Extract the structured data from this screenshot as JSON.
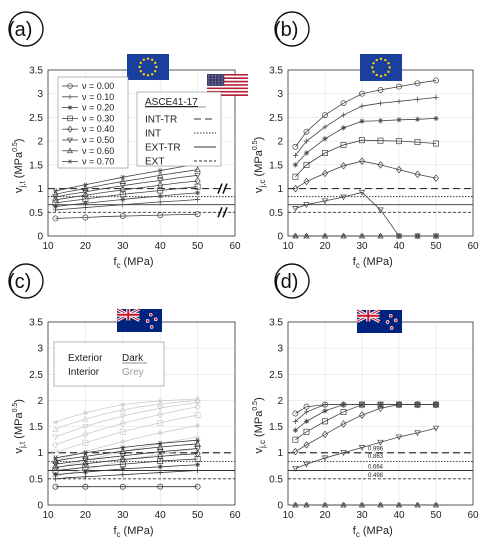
{
  "chart_data": [
    {
      "id": "a",
      "type": "line",
      "panel_label": "(a)",
      "xlabel": "f",
      "xlabel_sub": "c",
      "xlabel_unit": " (MPa)",
      "ylabel": "v",
      "ylabel_sub": "j,t",
      "ylabel_unit_pre": " (MPa",
      "ylabel_sup": "0.5",
      "ylabel_unit_post": ")",
      "xlim": [
        10,
        60
      ],
      "ylim": [
        0,
        3.5
      ],
      "xticks": [
        "10",
        "20",
        "30",
        "40",
        "50",
        "60"
      ],
      "yticks": [
        "0",
        "0.5",
        "1",
        "1.5",
        "2",
        "2.5",
        "3",
        "3.5"
      ],
      "flags": [
        "eu-flag",
        "us-flag"
      ],
      "legend": {
        "title_prefix": "ν = ",
        "entries": [
          {
            "label": "0.00",
            "marker": "circle"
          },
          {
            "label": "0.10",
            "marker": "plus"
          },
          {
            "label": "0.20",
            "marker": "star"
          },
          {
            "label": "0.30",
            "marker": "square"
          },
          {
            "label": "0.40",
            "marker": "diamond"
          },
          {
            "label": "0.50",
            "marker": "triangle-down"
          },
          {
            "label": "0.60",
            "marker": "triangle-up"
          },
          {
            "label": "0.70",
            "marker": "asterisk"
          }
        ]
      },
      "ref_legend": {
        "title": "ASCE41-17",
        "entries": [
          {
            "label": "INT-TR",
            "style": "dashed-long"
          },
          {
            "label": "INT",
            "style": "dotted"
          },
          {
            "label": "EXT-TR",
            "style": "solid"
          },
          {
            "label": "EXT",
            "style": "dashed-short"
          }
        ]
      },
      "ref_lines": [
        {
          "name": "INT-TR",
          "y": 1.0,
          "style": "dashed-long"
        },
        {
          "name": "INT",
          "y": 0.83,
          "style": "dotted"
        },
        {
          "name": "EXT-TR",
          "y": 0.66,
          "style": "solid"
        },
        {
          "name": "EXT",
          "y": 0.5,
          "style": "dashed-short"
        }
      ],
      "x": [
        12,
        15,
        20,
        25,
        30,
        35,
        40,
        45,
        50
      ],
      "series": [
        {
          "marker": "circle",
          "color": "#444444",
          "values": [
            0.37,
            0.38,
            0.39,
            0.41,
            0.42,
            0.43,
            0.44,
            0.45,
            0.46
          ]
        },
        {
          "marker": "plus",
          "color": "#444444",
          "values": [
            0.55,
            0.57,
            0.6,
            0.63,
            0.66,
            0.69,
            0.72,
            0.74,
            0.77
          ]
        },
        {
          "marker": "star",
          "color": "#444444",
          "values": [
            0.62,
            0.65,
            0.69,
            0.73,
            0.77,
            0.81,
            0.84,
            0.88,
            0.91
          ]
        },
        {
          "marker": "square",
          "color": "#444444",
          "values": [
            0.7,
            0.73,
            0.78,
            0.83,
            0.88,
            0.92,
            0.96,
            1.0,
            1.04
          ]
        },
        {
          "marker": "diamond",
          "color": "#444444",
          "values": [
            0.76,
            0.8,
            0.86,
            0.92,
            0.97,
            1.02,
            1.07,
            1.12,
            1.16
          ]
        },
        {
          "marker": "triangle-down",
          "color": "#444444",
          "values": [
            0.82,
            0.87,
            0.93,
            1.0,
            1.06,
            1.12,
            1.17,
            1.23,
            1.28
          ]
        },
        {
          "marker": "triangle-up",
          "color": "#444444",
          "values": [
            0.88,
            0.93,
            1.0,
            1.08,
            1.15,
            1.21,
            1.28,
            1.34,
            1.4
          ]
        },
        {
          "marker": "asterisk",
          "color": "#444444",
          "values": [
            0.95,
            1.0,
            1.08,
            1.16,
            1.24,
            1.31,
            1.38,
            1.45,
            1.52
          ]
        }
      ]
    },
    {
      "id": "b",
      "type": "line",
      "panel_label": "(b)",
      "xlabel": "f",
      "xlabel_sub": "c",
      "xlabel_unit": " (MPa)",
      "ylabel": "v",
      "ylabel_sub": "j,c",
      "ylabel_unit_pre": " (MPa",
      "ylabel_sup": "0.5",
      "ylabel_unit_post": ")",
      "xlim": [
        10,
        60
      ],
      "ylim": [
        0,
        3.5
      ],
      "xticks": [
        "10",
        "20",
        "30",
        "40",
        "50",
        "60"
      ],
      "yticks": [
        "0",
        "0.5",
        "1",
        "1.5",
        "2",
        "2.5",
        "3",
        "3.5"
      ],
      "flags": [
        "eu-flag"
      ],
      "ref_lines": [
        {
          "name": "INT-TR",
          "y": 1.0,
          "style": "dashed-long"
        },
        {
          "name": "INT",
          "y": 0.83,
          "style": "dotted"
        },
        {
          "name": "EXT-TR",
          "y": 0.66,
          "style": "solid"
        },
        {
          "name": "EXT",
          "y": 0.5,
          "style": "dashed-short"
        }
      ],
      "x": [
        12,
        15,
        20,
        25,
        30,
        35,
        40,
        45,
        50
      ],
      "series": [
        {
          "marker": "circle",
          "color": "#444444",
          "values": [
            1.88,
            2.2,
            2.55,
            2.8,
            3.0,
            3.08,
            3.15,
            3.22,
            3.28
          ]
        },
        {
          "marker": "plus",
          "color": "#444444",
          "values": [
            1.7,
            2.0,
            2.3,
            2.55,
            2.74,
            2.8,
            2.84,
            2.88,
            2.92
          ]
        },
        {
          "marker": "star",
          "color": "#444444",
          "values": [
            1.5,
            1.75,
            2.05,
            2.28,
            2.42,
            2.43,
            2.45,
            2.46,
            2.48
          ]
        },
        {
          "marker": "square",
          "color": "#444444",
          "values": [
            1.25,
            1.5,
            1.75,
            1.92,
            2.02,
            2.01,
            2.0,
            1.98,
            1.95
          ]
        },
        {
          "marker": "diamond",
          "color": "#444444",
          "values": [
            1.0,
            1.15,
            1.32,
            1.48,
            1.58,
            1.5,
            1.4,
            1.3,
            1.22
          ]
        },
        {
          "marker": "triangle-down",
          "color": "#444444",
          "values": [
            0.58,
            0.66,
            0.74,
            0.82,
            0.92,
            0.55,
            0.0,
            0.0,
            0.0
          ]
        },
        {
          "marker": "triangle-up",
          "color": "#444444",
          "values": [
            0.0,
            0.0,
            0.0,
            0.0,
            0.0,
            0.0,
            0.0,
            0.0,
            0.0
          ]
        },
        {
          "marker": "asterisk",
          "color": "#444444",
          "values": [
            0.0,
            0.0,
            0.0,
            0.0,
            0.0,
            0.0,
            0.0,
            0.0,
            0.0
          ]
        }
      ]
    },
    {
      "id": "c",
      "type": "line",
      "panel_label": "(c)",
      "xlabel": "f",
      "xlabel_sub": "c",
      "xlabel_unit": " (MPa)",
      "ylabel": "v",
      "ylabel_sub": "j,t",
      "ylabel_unit_pre": " (MPa",
      "ylabel_sup": "0.5",
      "ylabel_unit_post": ")",
      "xlim": [
        10,
        60
      ],
      "ylim": [
        0,
        3.5
      ],
      "xticks": [
        "10",
        "20",
        "30",
        "40",
        "50",
        "60"
      ],
      "yticks": [
        "0",
        "0.5",
        "1",
        "1.5",
        "2",
        "2.5",
        "3",
        "3.5"
      ],
      "flags": [
        "nz-flag"
      ],
      "color_legend": [
        {
          "label": "Exterior",
          "value": "Dark",
          "color": "#222222"
        },
        {
          "label": "Interior",
          "value": "Grey",
          "color": "#9a9a9a"
        }
      ],
      "ref_lines": [
        {
          "name": "INT-TR",
          "y": 1.0,
          "style": "dashed-long"
        },
        {
          "name": "INT",
          "y": 0.83,
          "style": "dotted"
        },
        {
          "name": "EXT-TR",
          "y": 0.66,
          "style": "solid"
        },
        {
          "name": "EXT",
          "y": 0.5,
          "style": "dashed-short"
        }
      ],
      "x": [
        12,
        15,
        20,
        25,
        30,
        35,
        40,
        45,
        50
      ],
      "series": [
        {
          "marker": "circle",
          "color": "#cccccc",
          "values": [
            0.55,
            0.6,
            0.68,
            0.76,
            0.84,
            0.91,
            0.97,
            1.03,
            1.08
          ]
        },
        {
          "marker": "plus",
          "color": "#cccccc",
          "values": [
            0.7,
            0.76,
            0.85,
            0.94,
            1.02,
            1.1,
            1.17,
            1.24,
            1.3
          ]
        },
        {
          "marker": "star",
          "color": "#cccccc",
          "values": [
            0.85,
            0.92,
            1.02,
            1.12,
            1.21,
            1.3,
            1.38,
            1.45,
            1.52
          ]
        },
        {
          "marker": "square",
          "color": "#cccccc",
          "values": [
            1.0,
            1.08,
            1.19,
            1.3,
            1.4,
            1.49,
            1.57,
            1.65,
            1.72
          ]
        },
        {
          "marker": "diamond",
          "color": "#cccccc",
          "values": [
            1.15,
            1.23,
            1.35,
            1.46,
            1.56,
            1.65,
            1.73,
            1.81,
            1.88
          ]
        },
        {
          "marker": "triangle-down",
          "color": "#cccccc",
          "values": [
            1.3,
            1.38,
            1.5,
            1.61,
            1.7,
            1.78,
            1.85,
            1.91,
            1.96
          ]
        },
        {
          "marker": "triangle-up",
          "color": "#cccccc",
          "values": [
            1.45,
            1.53,
            1.64,
            1.74,
            1.82,
            1.88,
            1.93,
            1.97,
            2.0
          ]
        },
        {
          "marker": "asterisk",
          "color": "#cccccc",
          "values": [
            1.58,
            1.66,
            1.76,
            1.85,
            1.92,
            1.96,
            1.99,
            2.01,
            2.03
          ]
        },
        {
          "marker": "circle",
          "color": "#333333",
          "values": [
            0.35,
            0.35,
            0.35,
            0.35,
            0.35,
            0.35,
            0.35,
            0.35,
            0.35
          ]
        },
        {
          "marker": "plus",
          "color": "#333333",
          "values": [
            0.5,
            0.52,
            0.54,
            0.56,
            0.58,
            0.6,
            0.62,
            0.64,
            0.66
          ]
        },
        {
          "marker": "star",
          "color": "#333333",
          "values": [
            0.58,
            0.6,
            0.63,
            0.66,
            0.69,
            0.71,
            0.73,
            0.75,
            0.77
          ]
        },
        {
          "marker": "square",
          "color": "#333333",
          "values": [
            0.66,
            0.68,
            0.72,
            0.75,
            0.78,
            0.81,
            0.84,
            0.86,
            0.88
          ]
        },
        {
          "marker": "diamond",
          "color": "#333333",
          "values": [
            0.72,
            0.75,
            0.79,
            0.83,
            0.87,
            0.9,
            0.93,
            0.96,
            0.98
          ]
        },
        {
          "marker": "triangle-down",
          "color": "#333333",
          "values": [
            0.78,
            0.81,
            0.86,
            0.9,
            0.94,
            0.98,
            1.02,
            1.05,
            1.08
          ]
        },
        {
          "marker": "triangle-up",
          "color": "#333333",
          "values": [
            0.84,
            0.88,
            0.93,
            0.98,
            1.03,
            1.07,
            1.11,
            1.14,
            1.17
          ]
        },
        {
          "marker": "asterisk",
          "color": "#333333",
          "values": [
            0.9,
            0.94,
            1.0,
            1.05,
            1.1,
            1.14,
            1.18,
            1.21,
            1.24
          ]
        }
      ]
    },
    {
      "id": "d",
      "type": "line",
      "panel_label": "(d)",
      "xlabel": "f",
      "xlabel_sub": "c",
      "xlabel_unit": " (MPa)",
      "ylabel": "v",
      "ylabel_sub": "j,c",
      "ylabel_unit_pre": " (MPa",
      "ylabel_sup": "0.5",
      "ylabel_unit_post": ")",
      "xlim": [
        10,
        60
      ],
      "ylim": [
        0,
        3.5
      ],
      "xticks": [
        "10",
        "20",
        "30",
        "40",
        "50",
        "60"
      ],
      "yticks": [
        "0",
        "0.5",
        "1",
        "1.5",
        "2",
        "2.5",
        "3",
        "3.5"
      ],
      "flags": [
        "nz-flag"
      ],
      "annotations": [
        "0.996",
        "0.863",
        "0.664",
        "0.498"
      ],
      "ref_lines": [
        {
          "name": "INT-TR",
          "y": 1.0,
          "style": "dashed-long"
        },
        {
          "name": "INT",
          "y": 0.83,
          "style": "dotted"
        },
        {
          "name": "EXT-TR",
          "y": 0.66,
          "style": "solid"
        },
        {
          "name": "EXT",
          "y": 0.5,
          "style": "dashed-short"
        }
      ],
      "x": [
        12,
        15,
        20,
        25,
        30,
        35,
        40,
        45,
        50
      ],
      "series": [
        {
          "marker": "circle",
          "color": "#444444",
          "values": [
            1.75,
            1.88,
            1.92,
            1.92,
            1.92,
            1.92,
            1.92,
            1.92,
            1.92
          ]
        },
        {
          "marker": "plus",
          "color": "#444444",
          "values": [
            1.6,
            1.78,
            1.92,
            1.92,
            1.92,
            1.92,
            1.92,
            1.92,
            1.92
          ]
        },
        {
          "marker": "star",
          "color": "#444444",
          "values": [
            1.43,
            1.6,
            1.8,
            1.92,
            1.92,
            1.92,
            1.92,
            1.92,
            1.92
          ]
        },
        {
          "marker": "square",
          "color": "#444444",
          "values": [
            1.25,
            1.4,
            1.6,
            1.78,
            1.92,
            1.92,
            1.92,
            1.92,
            1.92
          ]
        },
        {
          "marker": "diamond",
          "color": "#444444",
          "values": [
            1.02,
            1.15,
            1.35,
            1.55,
            1.72,
            1.85,
            1.92,
            1.92,
            1.92
          ]
        },
        {
          "marker": "triangle-down",
          "color": "#444444",
          "values": [
            0.7,
            0.78,
            0.9,
            1.0,
            1.1,
            1.2,
            1.3,
            1.38,
            1.47
          ]
        },
        {
          "marker": "triangle-up",
          "color": "#444444",
          "values": [
            0.0,
            0.0,
            0.0,
            0.0,
            0.0,
            0.0,
            0.0,
            0.0,
            0.0
          ]
        },
        {
          "marker": "asterisk",
          "color": "#444444",
          "values": [
            0.0,
            0.0,
            0.0,
            0.0,
            0.0,
            0.0,
            0.0,
            0.0,
            0.0
          ]
        }
      ]
    }
  ]
}
